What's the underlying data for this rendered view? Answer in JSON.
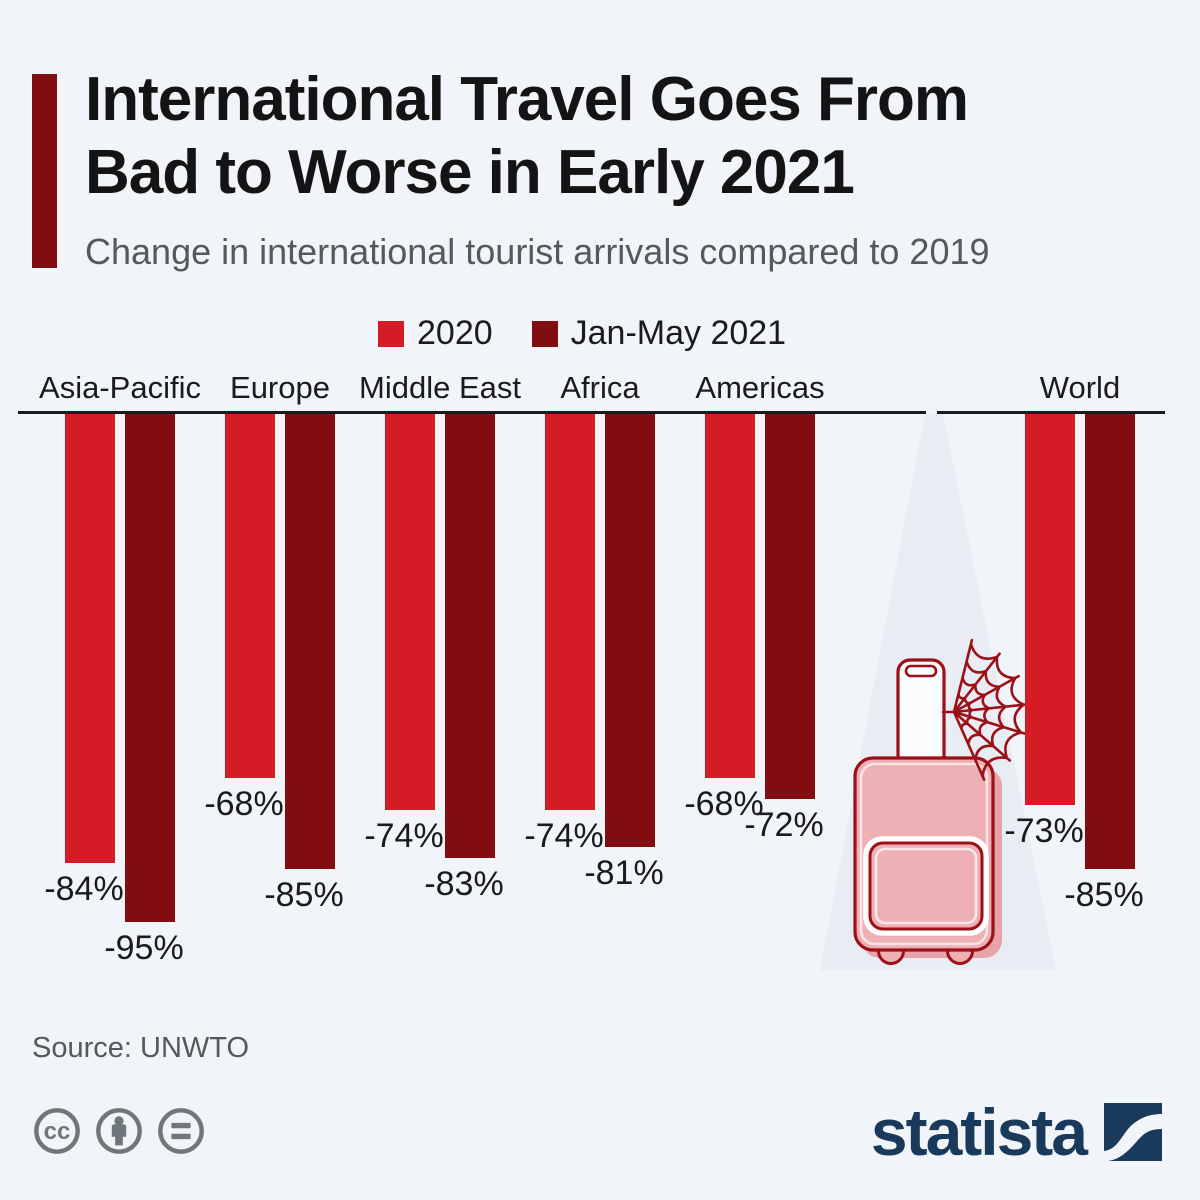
{
  "header": {
    "title_line1": "International Travel Goes From",
    "title_line2": "Bad to Worse in Early 2021",
    "subtitle": "Change in international tourist arrivals compared to 2019"
  },
  "legend": {
    "items": [
      {
        "label": "2020",
        "color": "#d51b25"
      },
      {
        "label": "Jan-May 2021",
        "color": "#820d11"
      }
    ]
  },
  "chart_data": {
    "type": "bar",
    "orientation": "vertical-downward",
    "categories": [
      "Asia-Pacific",
      "Europe",
      "Middle East",
      "Africa",
      "Americas",
      "World"
    ],
    "series": [
      {
        "name": "2020",
        "color": "#d51b25",
        "values": [
          -84,
          -68,
          -74,
          -74,
          -68,
          -73
        ]
      },
      {
        "name": "Jan-May 2021",
        "color": "#820d11",
        "values": [
          -95,
          -85,
          -83,
          -81,
          -72,
          -85
        ]
      }
    ],
    "value_labels": [
      [
        "-84%",
        "-68%",
        "-74%",
        "-74%",
        "-68%",
        "-73%"
      ],
      [
        "-95%",
        "-85%",
        "-83%",
        "-81%",
        "-72%",
        "-85%"
      ]
    ],
    "unit": "%",
    "ylim": [
      -100,
      0
    ],
    "grid": false,
    "legend_position": "top"
  },
  "illustration": {
    "name": "suitcase-with-spiderweb-in-spotlight",
    "parts": [
      "spotlight-beam",
      "suitcase",
      "spider-web"
    ]
  },
  "footer": {
    "source": "Source: UNWTO",
    "brand": "statista",
    "license_icons": [
      "creative-commons",
      "attribution-person",
      "equals-no-derivatives"
    ]
  },
  "colors": {
    "background": "#f1f4f8",
    "accent_bar": "#820d11",
    "red_2020": "#d51b25",
    "dark_red_2021": "#820d11",
    "baseline": "#191c1f",
    "text_dark": "#1b1b1d",
    "text_gray": "#55595e",
    "icon_gray": "#6e777c",
    "brand_navy": "#1a3a5c",
    "suitcase_pink": "#efb0b5",
    "suitcase_outline": "#9b1117",
    "spotlight": "#e8ecf2"
  }
}
